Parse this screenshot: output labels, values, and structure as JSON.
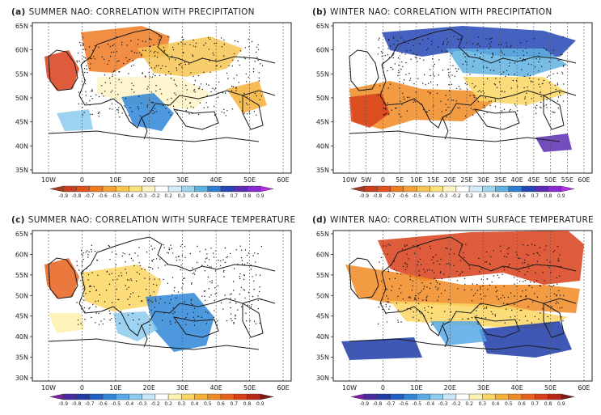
{
  "panels": [
    {
      "id": "a",
      "label": "(a)",
      "title": "SUMMER NAO: CORRELATION WITH PRECIPITATION",
      "lon_ticks": [
        "10W",
        "0",
        "10E",
        "20E",
        "30E",
        "40E",
        "50E",
        "60E"
      ],
      "lat_ticks": [
        "65N",
        "60N",
        "55N",
        "50N",
        "45N",
        "40N",
        "35N"
      ],
      "colorbar": [
        "-0.9",
        "-0.8",
        "-0.7",
        "-0.6",
        "-0.5",
        "-0.4",
        "-0.3",
        "-0.2",
        "0.2",
        "0.3",
        "0.4",
        "0.5",
        "0.6",
        "0.7",
        "0.8",
        "0.9"
      ],
      "colorbar_scheme": "precip"
    },
    {
      "id": "b",
      "label": "(b)",
      "title": "WINTER NAO: CORRELATION WITH PRECIPITATION",
      "lon_ticks": [
        "10W",
        "5W",
        "0",
        "5E",
        "10E",
        "15E",
        "20E",
        "25E",
        "30E",
        "35E",
        "40E",
        "45E",
        "50E",
        "55E",
        "60E"
      ],
      "lat_ticks": [
        "65N",
        "60N",
        "55N",
        "50N",
        "45N",
        "40N",
        "35N"
      ],
      "colorbar": [
        "-0.9",
        "-0.8",
        "-0.7",
        "-0.6",
        "-0.5",
        "-0.4",
        "-0.3",
        "-0.2",
        "0.2",
        "0.3",
        "0.4",
        "0.5",
        "0.6",
        "0.7",
        "0.8",
        "0.9"
      ],
      "colorbar_scheme": "precip"
    },
    {
      "id": "c",
      "label": "(c)",
      "title": "SUMMER NAO: CORRELATION WITH SURFACE TEMPERATURE",
      "lon_ticks": [
        "10W",
        "0",
        "10E",
        "20E",
        "30E",
        "40E",
        "50E",
        "60E"
      ],
      "lat_ticks": [
        "65N",
        "60N",
        "55N",
        "50N",
        "45N",
        "40N",
        "35N",
        "30N"
      ],
      "colorbar": [
        "-0.9",
        "-0.8",
        "-0.7",
        "-0.6",
        "-0.5",
        "-0.4",
        "-0.3",
        "-0.2",
        "0.2",
        "0.3",
        "0.4",
        "0.5",
        "0.6",
        "0.7",
        "0.8",
        "0.9"
      ],
      "colorbar_scheme": "temp"
    },
    {
      "id": "d",
      "label": "(d)",
      "title": "WINTER NAO: CORRELATION WITH SURFACE TEMPERATURE",
      "lon_ticks": [
        "10W",
        "0",
        "10E",
        "20E",
        "30E",
        "40E",
        "50E",
        "60E"
      ],
      "lat_ticks": [
        "65N",
        "60N",
        "55N",
        "50N",
        "45N",
        "40N",
        "35N",
        "30N"
      ],
      "colorbar": [
        "-0.9",
        "-0.8",
        "-0.7",
        "-0.6",
        "-0.5",
        "-0.4",
        "-0.3",
        "-0.2",
        "0.2",
        "0.3",
        "0.4",
        "0.5",
        "0.6",
        "0.7",
        "0.8",
        "0.9"
      ],
      "colorbar_scheme": "temp"
    }
  ],
  "palettes": {
    "precip": [
      "#a23b1f",
      "#c8401d",
      "#e0521c",
      "#ee7a22",
      "#f3a23a",
      "#f7c554",
      "#fbe27c",
      "#fdf3c4",
      "#ffffff",
      "#d3ecf7",
      "#9fd4ee",
      "#5fb1e0",
      "#2f7dd0",
      "#2447b5",
      "#5a2eb0",
      "#8a2bd0",
      "#b133e0"
    ],
    "temp": [
      "#7a1fa6",
      "#4a2aa0",
      "#1f3ba8",
      "#1f5fc8",
      "#2f86d8",
      "#58a9e6",
      "#8ccaef",
      "#c7e6f7",
      "#ffffff",
      "#fff1b0",
      "#fbd660",
      "#f6b035",
      "#f08a22",
      "#e8621c",
      "#d8401a",
      "#b82a18",
      "#7d1a12"
    ]
  },
  "map_colors": {
    "background": "#ffffff",
    "coastline": "#1a1a1a",
    "gridline": "#555555"
  }
}
